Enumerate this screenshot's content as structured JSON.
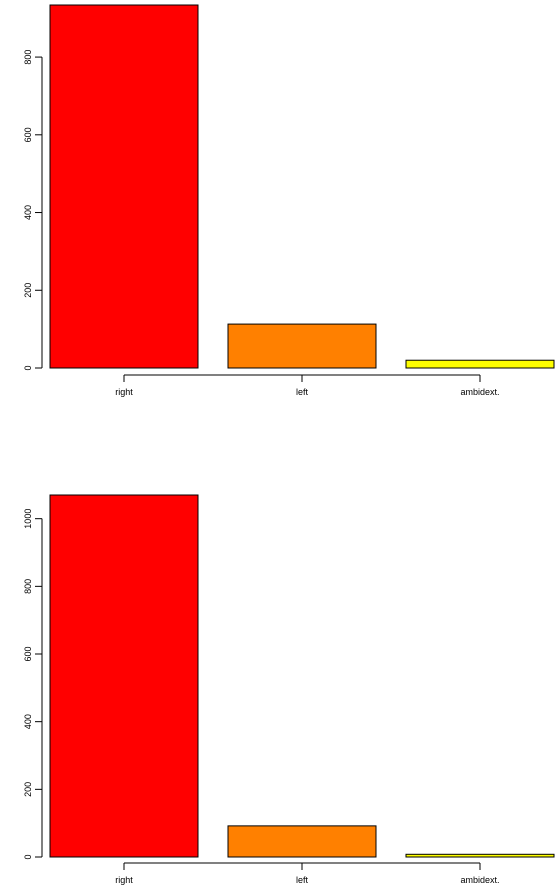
{
  "chart_data": [
    {
      "type": "bar",
      "categories": [
        "right",
        "left",
        "ambidext."
      ],
      "values": [
        934,
        113,
        20
      ],
      "colors": [
        "#ff0000",
        "#ff8000",
        "#ffff00"
      ],
      "yticks": [
        0,
        200,
        400,
        600,
        800
      ],
      "ylim": [
        0,
        934
      ],
      "title": "",
      "xlabel": "",
      "ylabel": ""
    },
    {
      "type": "bar",
      "categories": [
        "right",
        "left",
        "ambidext."
      ],
      "values": [
        1070,
        92,
        8
      ],
      "colors": [
        "#ff0000",
        "#ff8000",
        "#ffff00"
      ],
      "yticks": [
        0,
        200,
        400,
        600,
        800,
        1000
      ],
      "ylim": [
        0,
        1070
      ],
      "title": "",
      "xlabel": "",
      "ylabel": ""
    }
  ]
}
